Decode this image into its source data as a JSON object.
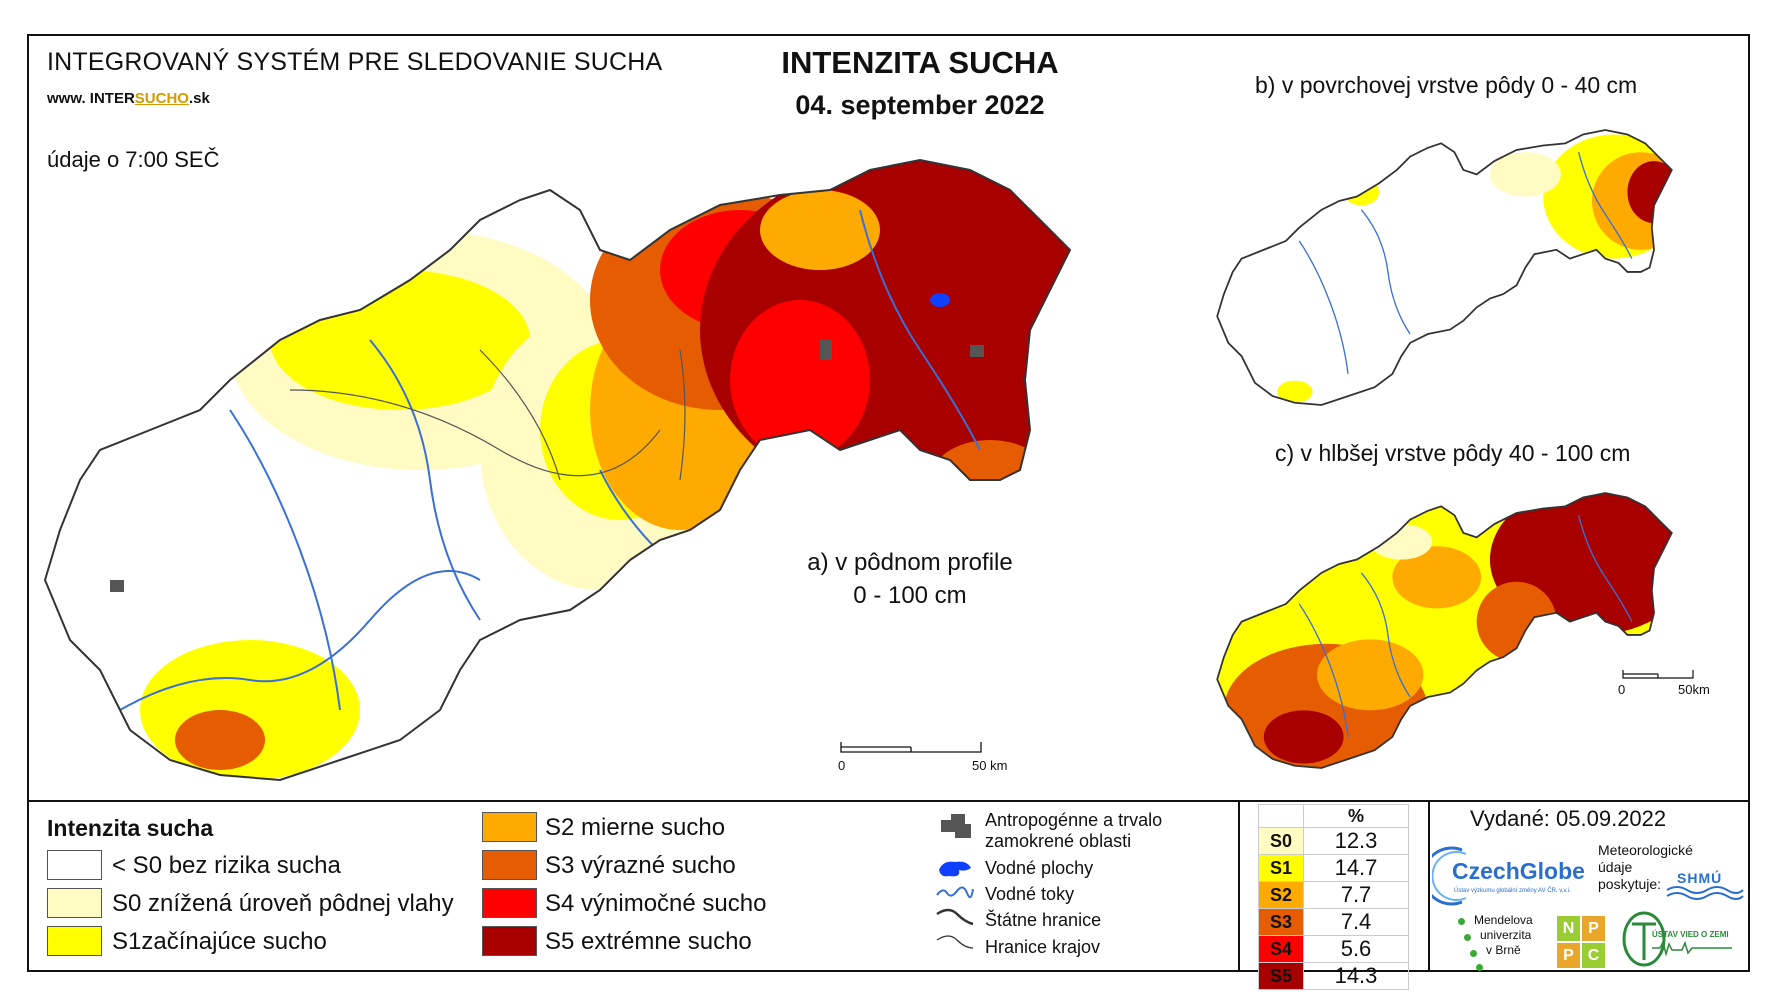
{
  "header": {
    "system_title": "INTEGROVANÝ SYSTÉM PRE SLEDOVANIE SUCHA",
    "www_prefix": "www. INTER",
    "www_accent": "SUCHO",
    "www_suffix": ".sk",
    "data_time": "údaje o 7:00 SEČ",
    "main_title": "INTENZITA SUCHA",
    "date": "04. september 2022"
  },
  "maps": {
    "a_label_line1": "a) v pôdnom profile",
    "a_label_line2": "0 - 100 cm",
    "b_label": "b) v povrchovej vrstve pôdy 0 - 40 cm",
    "c_label": "c) v hlbšej vrstve pôdy 40 - 100 cm",
    "scale_main_start": "0",
    "scale_main_end": "50 km",
    "scale_small_start": "0",
    "scale_small_end": "50km"
  },
  "legend": {
    "title": "Intenzita sucha",
    "classes": [
      {
        "label": "< S0 bez rizika sucha",
        "color": "#ffffff"
      },
      {
        "label": "S0 znížená úroveň pôdnej vlahy",
        "color": "#fffbc2"
      },
      {
        "label": "S1začínajúce sucho",
        "color": "#ffff00"
      },
      {
        "label": "S2 mierne sucho",
        "color": "#ffaa00"
      },
      {
        "label": "S3 výrazné sucho",
        "color": "#e65c00"
      },
      {
        "label": "S4 výnimočné sucho",
        "color": "#ff0000"
      },
      {
        "label": "S5 extrémne sucho",
        "color": "#a80000"
      }
    ],
    "symbols": [
      {
        "label_line1": "Antropogénne a trvalo",
        "label_line2": "zamokrené oblasti"
      },
      {
        "label_line1": "Vodné plochy"
      },
      {
        "label_line1": "Vodné toky"
      },
      {
        "label_line1": "Štátne hranice"
      },
      {
        "label_line1": "Hranice krajov"
      }
    ]
  },
  "percentages": {
    "header": "%",
    "rows": [
      {
        "class": "S0",
        "value": "12.3",
        "color": "#fffbc2"
      },
      {
        "class": "S1",
        "value": "14.7",
        "color": "#ffff00"
      },
      {
        "class": "S2",
        "value": "7.7",
        "color": "#ffaa00"
      },
      {
        "class": "S3",
        "value": "7.4",
        "color": "#e65c00"
      },
      {
        "class": "S4",
        "value": "5.6",
        "color": "#ff0000"
      },
      {
        "class": "S5",
        "value": "14.3",
        "color": "#a80000"
      }
    ]
  },
  "footer": {
    "issued": "Vydané: 05.09.2022",
    "czechglobe": "CzechGlobe",
    "czechglobe_sub": "Ústav výzkumu globální změny AV ČR, v.v.i.",
    "meteo_line1": "Meteorologické",
    "meteo_line2": "údaje",
    "meteo_line3": "poskytuje:",
    "shmu": "SHMÚ",
    "mendel_line1": "Mendelova",
    "mendel_line2": "univerzita",
    "mendel_line3": "v Brně",
    "nppc": [
      "N",
      "P",
      "P",
      "C"
    ],
    "uvz": "ÚSTAV VIED O ZEMI"
  }
}
